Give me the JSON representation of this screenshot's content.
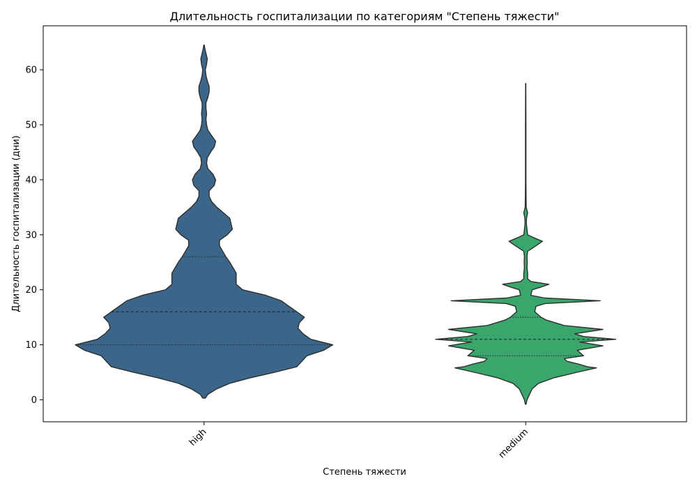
{
  "chart_data": {
    "type": "violin",
    "title": "Длительность госпитализации по категориям \"Степень тяжести\"",
    "xlabel": "Степень тяжести",
    "ylabel": "Длительность госпитализации (дни)",
    "ylim": [
      -4,
      68
    ],
    "yticks": [
      0,
      10,
      20,
      30,
      40,
      50,
      60
    ],
    "categories": [
      "high",
      "medium"
    ],
    "series": [
      {
        "category": "high",
        "color": "#3b6589",
        "range": [
          0.3,
          64.5
        ],
        "quartiles": {
          "q1": 10,
          "median": 16,
          "q3": 26
        },
        "profile": [
          [
            0.3,
            0.01
          ],
          [
            1,
            0.03
          ],
          [
            2,
            0.1
          ],
          [
            3,
            0.2
          ],
          [
            4,
            0.36
          ],
          [
            5,
            0.55
          ],
          [
            6,
            0.72
          ],
          [
            8,
            0.8
          ],
          [
            9,
            0.93
          ],
          [
            10,
            1.0
          ],
          [
            11,
            0.83
          ],
          [
            12,
            0.77
          ],
          [
            13,
            0.73
          ],
          [
            14,
            0.74
          ],
          [
            15,
            0.78
          ],
          [
            16,
            0.72
          ],
          [
            17,
            0.66
          ],
          [
            18,
            0.6
          ],
          [
            19,
            0.48
          ],
          [
            20,
            0.3
          ],
          [
            21,
            0.25
          ],
          [
            23,
            0.25
          ],
          [
            25,
            0.2
          ],
          [
            26,
            0.17
          ],
          [
            28,
            0.12
          ],
          [
            29,
            0.12
          ],
          [
            30,
            0.18
          ],
          [
            31,
            0.22
          ],
          [
            33,
            0.2
          ],
          [
            34,
            0.15
          ],
          [
            35,
            0.1
          ],
          [
            36,
            0.06
          ],
          [
            37,
            0.04
          ],
          [
            38,
            0.04
          ],
          [
            39,
            0.08
          ],
          [
            40,
            0.09
          ],
          [
            41,
            0.07
          ],
          [
            42,
            0.03
          ],
          [
            43,
            0.02
          ],
          [
            44,
            0.025
          ],
          [
            45,
            0.05
          ],
          [
            46,
            0.08
          ],
          [
            47,
            0.09
          ],
          [
            48,
            0.06
          ],
          [
            49,
            0.03
          ],
          [
            50,
            0.02
          ],
          [
            51,
            0.015
          ],
          [
            52,
            0.02
          ],
          [
            53,
            0.015
          ],
          [
            54,
            0.015
          ],
          [
            55,
            0.03
          ],
          [
            56,
            0.04
          ],
          [
            57,
            0.04
          ],
          [
            58,
            0.025
          ],
          [
            59,
            0.015
          ],
          [
            60,
            0.01
          ],
          [
            61,
            0.02
          ],
          [
            62,
            0.025
          ],
          [
            63,
            0.015
          ],
          [
            64,
            0.005
          ],
          [
            64.5,
            0.002
          ]
        ]
      },
      {
        "category": "medium",
        "color": "#3aa66b",
        "range": [
          -0.8,
          57.5
        ],
        "quartiles": {
          "q1": 8,
          "median": 11,
          "q3": 15
        },
        "profile": [
          [
            -0.8,
            0.003
          ],
          [
            0,
            0.01
          ],
          [
            1,
            0.03
          ],
          [
            2,
            0.05
          ],
          [
            3,
            0.1
          ],
          [
            4,
            0.22
          ],
          [
            5,
            0.4
          ],
          [
            5.8,
            0.55
          ],
          [
            6,
            0.48
          ],
          [
            6.5,
            0.41
          ],
          [
            7,
            0.32
          ],
          [
            7.5,
            0.3
          ],
          [
            8,
            0.45
          ],
          [
            9,
            0.4
          ],
          [
            9.8,
            0.6
          ],
          [
            10.5,
            0.42
          ],
          [
            11,
            0.7
          ],
          [
            11.5,
            0.45
          ],
          [
            12,
            0.38
          ],
          [
            12.8,
            0.6
          ],
          [
            13.5,
            0.3
          ],
          [
            14.5,
            0.16
          ],
          [
            15,
            0.12
          ],
          [
            16,
            0.07
          ],
          [
            17,
            0.08
          ],
          [
            17.5,
            0.15
          ],
          [
            18,
            0.58
          ],
          [
            18.5,
            0.15
          ],
          [
            19,
            0.04
          ],
          [
            20,
            0.05
          ],
          [
            20.5,
            0.12
          ],
          [
            21,
            0.18
          ],
          [
            21.5,
            0.04
          ],
          [
            22,
            0.015
          ],
          [
            23,
            0.015
          ],
          [
            24,
            0.01
          ],
          [
            25,
            0.012
          ],
          [
            26,
            0.01
          ],
          [
            27,
            0.015
          ],
          [
            28,
            0.08
          ],
          [
            28.8,
            0.13
          ],
          [
            29.5,
            0.06
          ],
          [
            30,
            0.015
          ],
          [
            31,
            0.01
          ],
          [
            32,
            0.005
          ],
          [
            33,
            0.006
          ],
          [
            34,
            0.015
          ],
          [
            35,
            0.004
          ],
          [
            37,
            0.003
          ],
          [
            40,
            0.002
          ],
          [
            45,
            0.002
          ],
          [
            50,
            0.002
          ],
          [
            57.5,
            0.001
          ]
        ]
      }
    ]
  }
}
